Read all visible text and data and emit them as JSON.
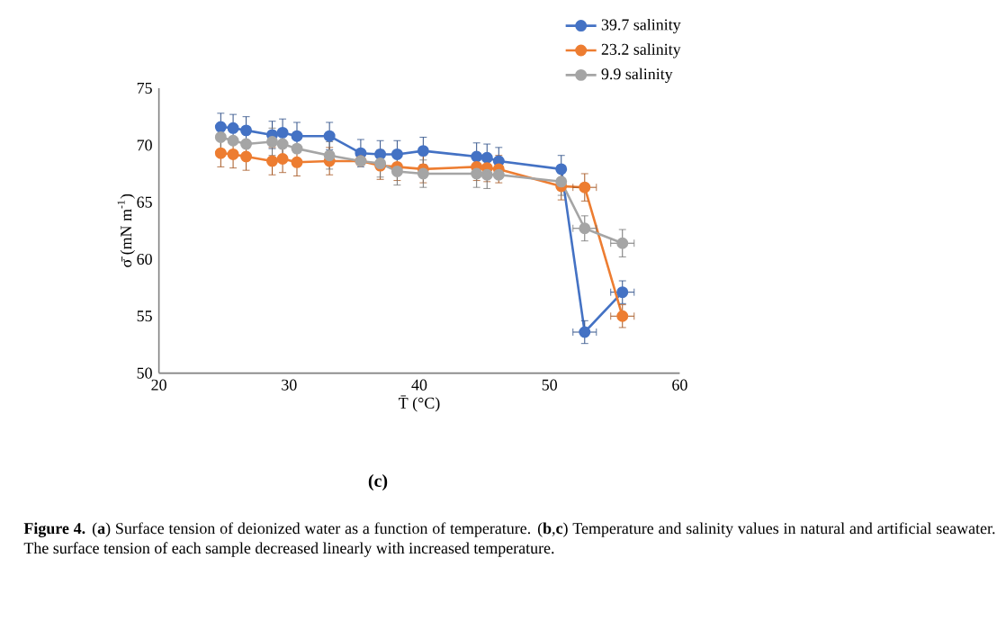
{
  "chart_data": {
    "type": "line",
    "xlabel": "T̄ (°C)",
    "ylabel": "σ̄ (mN m$^{-1}$)",
    "x": [
      24.75,
      25.7,
      26.7,
      28.7,
      29.5,
      30.6,
      33.1,
      35.5,
      37.0,
      38.3,
      40.3,
      44.4,
      45.2,
      46.1,
      50.9,
      52.7,
      55.6
    ],
    "series": [
      {
        "name": "39.7 salinity",
        "color": "#4472c4",
        "values": [
          71.6,
          71.5,
          71.3,
          70.9,
          71.1,
          70.8,
          70.8,
          69.3,
          69.2,
          69.2,
          69.5,
          69.0,
          68.9,
          68.6,
          67.9,
          53.6,
          57.1
        ],
        "errors": [
          1.2,
          1.2,
          1.2,
          1.2,
          1.2,
          1.2,
          1.2,
          1.2,
          1.2,
          1.2,
          1.2,
          1.2,
          1.2,
          1.2,
          1.2,
          1.0,
          1.0
        ],
        "xerrors": [
          null,
          null,
          null,
          null,
          null,
          null,
          null,
          null,
          null,
          null,
          null,
          null,
          null,
          null,
          null,
          0.9,
          0.9
        ]
      },
      {
        "name": "23.2 salinity",
        "color": "#ed7d31",
        "values": [
          69.3,
          69.2,
          69.0,
          68.6,
          68.8,
          68.5,
          68.6,
          68.6,
          68.2,
          68.1,
          67.9,
          68.1,
          68.0,
          67.9,
          66.4,
          66.3,
          55.0
        ],
        "errors": [
          1.2,
          1.2,
          1.2,
          1.2,
          1.2,
          1.2,
          1.2,
          null,
          1.2,
          1.2,
          1.2,
          1.2,
          1.2,
          1.2,
          1.2,
          1.2,
          1.0
        ],
        "xerrors": [
          null,
          null,
          null,
          null,
          null,
          null,
          null,
          null,
          null,
          null,
          null,
          null,
          null,
          null,
          null,
          0.9,
          0.9
        ]
      },
      {
        "name": "9.9 salinity",
        "color": "#a5a5a5",
        "values": [
          70.7,
          70.4,
          70.1,
          70.3,
          70.1,
          69.7,
          69.1,
          68.6,
          68.4,
          67.7,
          67.5,
          67.5,
          67.4,
          67.4,
          66.8,
          62.7,
          61.4
        ],
        "errors": [
          1.2,
          null,
          null,
          1.2,
          1.2,
          null,
          1.2,
          null,
          1.2,
          1.2,
          1.2,
          1.2,
          1.2,
          null,
          1.2,
          1.1,
          1.2
        ],
        "xerrors": [
          null,
          null,
          null,
          null,
          null,
          null,
          null,
          null,
          null,
          null,
          null,
          null,
          null,
          null,
          null,
          0.9,
          0.9
        ]
      }
    ],
    "xlim": [
      20,
      60
    ],
    "xticks": [
      20,
      30,
      40,
      50,
      60
    ],
    "ylim": [
      50,
      75
    ],
    "yticks": [
      50,
      55,
      60,
      65,
      70,
      75
    ],
    "marker": "circle",
    "line_style": "solid",
    "legend": "top right",
    "grid": false,
    "annotations": [
      "(c)",
      "**Figure 4.** (**a**) Surface tension of deionized water as a function of temperature. (**b**,**c**) Temperature and salinity values in natural and artificial seawater. The surface tension of each sample decreased linearly with increased temperature."
    ]
  }
}
